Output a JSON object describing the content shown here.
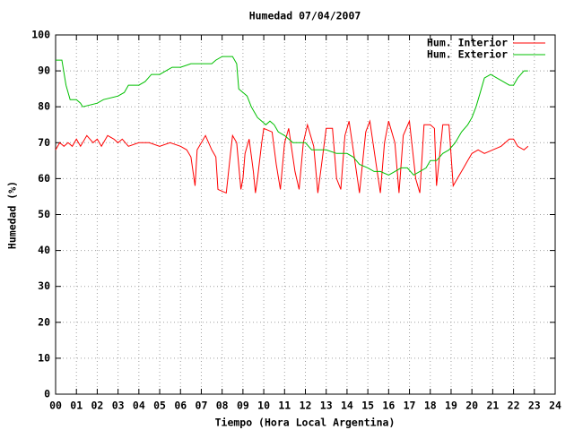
{
  "chart_data": {
    "type": "line",
    "title": "Humedad 07/04/2007",
    "x_label": "Tiempo (Hora Local Argentina)",
    "y_label": "Humedad (%)",
    "xlim": [
      0,
      24
    ],
    "ylim": [
      0,
      100
    ],
    "xticks": [
      {
        "value": 0,
        "label": "00"
      },
      {
        "value": 1,
        "label": "01"
      },
      {
        "value": 2,
        "label": "02"
      },
      {
        "value": 3,
        "label": "03"
      },
      {
        "value": 4,
        "label": "04"
      },
      {
        "value": 5,
        "label": "05"
      },
      {
        "value": 6,
        "label": "06"
      },
      {
        "value": 7,
        "label": "07"
      },
      {
        "value": 8,
        "label": "08"
      },
      {
        "value": 9,
        "label": "09"
      },
      10,
      11,
      12,
      13,
      14,
      15,
      16,
      17,
      18,
      19,
      20,
      21,
      22,
      23,
      24
    ],
    "yticks": [
      0,
      10,
      20,
      30,
      40,
      50,
      60,
      70,
      80,
      90,
      100
    ],
    "grid": true,
    "legend": "top-right",
    "series": [
      {
        "name": "Hum. Interior",
        "color": "#ff0000",
        "x": [
          0,
          0.2,
          0.4,
          0.6,
          0.8,
          1.0,
          1.2,
          1.5,
          1.8,
          2.0,
          2.2,
          2.5,
          2.8,
          3.0,
          3.2,
          3.5,
          4.0,
          4.5,
          5.0,
          5.5,
          6.0,
          6.3,
          6.5,
          6.6,
          6.7,
          6.8,
          7.0,
          7.2,
          7.5,
          7.7,
          7.8,
          8.2,
          8.4,
          8.5,
          8.7,
          8.9,
          9.0,
          9.1,
          9.3,
          9.5,
          9.6,
          9.7,
          9.9,
          10.0,
          10.4,
          10.6,
          10.8,
          11.0,
          11.2,
          11.5,
          11.7,
          11.9,
          12.1,
          12.4,
          12.6,
          12.8,
          13.0,
          13.3,
          13.5,
          13.7,
          13.9,
          14.1,
          14.4,
          14.6,
          14.9,
          15.1,
          15.4,
          15.6,
          15.8,
          16.0,
          16.3,
          16.5,
          16.7,
          17.0,
          17.3,
          17.5,
          17.7,
          18.0,
          18.2,
          18.3,
          18.6,
          18.9,
          19.1,
          19.3,
          19.6,
          19.8,
          20.0,
          20.3,
          20.6,
          21.0,
          21.4,
          21.8,
          22.0,
          22.2,
          22.5,
          22.7
        ],
        "values": [
          68,
          70,
          69,
          70,
          69,
          71,
          69,
          72,
          70,
          71,
          69,
          72,
          71,
          70,
          71,
          69,
          70,
          70,
          69,
          70,
          69,
          68,
          66,
          62,
          58,
          68,
          70,
          72,
          68,
          66,
          57,
          56,
          67,
          72,
          70,
          57,
          60,
          67,
          71,
          62,
          56,
          60,
          70,
          74,
          73,
          64,
          57,
          70,
          74,
          62,
          57,
          70,
          75,
          69,
          56,
          65,
          74,
          74,
          60,
          57,
          72,
          76,
          64,
          56,
          73,
          76,
          64,
          56,
          70,
          76,
          70,
          56,
          72,
          76,
          60,
          56,
          75,
          75,
          74,
          58,
          75,
          75,
          58,
          60,
          63,
          65,
          67,
          68,
          67,
          68,
          69,
          71,
          71,
          69,
          68,
          69
        ]
      },
      {
        "name": "Hum. Exterior",
        "color": "#00c000",
        "x": [
          0,
          0.3,
          0.5,
          0.7,
          1.0,
          1.2,
          1.3,
          2.0,
          2.3,
          3.0,
          3.3,
          3.5,
          4.0,
          4.3,
          4.6,
          5.0,
          5.3,
          5.6,
          6.0,
          6.5,
          7.0,
          7.5,
          7.7,
          8.0,
          8.5,
          8.7,
          8.8,
          9.0,
          9.2,
          9.4,
          9.5,
          9.7,
          9.9,
          10.1,
          10.3,
          10.5,
          10.7,
          11.0,
          11.2,
          11.4,
          11.7,
          12.0,
          12.3,
          12.7,
          13.0,
          13.5,
          14.0,
          14.3,
          14.6,
          15.0,
          15.3,
          15.6,
          16.0,
          16.3,
          16.6,
          16.9,
          17.2,
          17.5,
          17.8,
          18.0,
          18.3,
          18.6,
          18.9,
          19.2,
          19.5,
          19.8,
          20.0,
          20.2,
          20.4,
          20.6,
          20.9,
          21.2,
          21.5,
          21.8,
          22.0,
          22.2,
          22.5,
          22.7
        ],
        "values": [
          93,
          93,
          86,
          82,
          82,
          81,
          80,
          81,
          82,
          83,
          84,
          86,
          86,
          87,
          89,
          89,
          90,
          91,
          91,
          92,
          92,
          92,
          93,
          94,
          94,
          92,
          85,
          84,
          83,
          80,
          79,
          77,
          76,
          75,
          76,
          75,
          73,
          72,
          71,
          70,
          70,
          70,
          68,
          68,
          68,
          67,
          67,
          66,
          64,
          63,
          62,
          62,
          61,
          62,
          63,
          63,
          61,
          62,
          63,
          65,
          65,
          67,
          68,
          70,
          73,
          75,
          77,
          80,
          84,
          88,
          89,
          88,
          87,
          86,
          86,
          88,
          90,
          90
        ]
      }
    ]
  }
}
